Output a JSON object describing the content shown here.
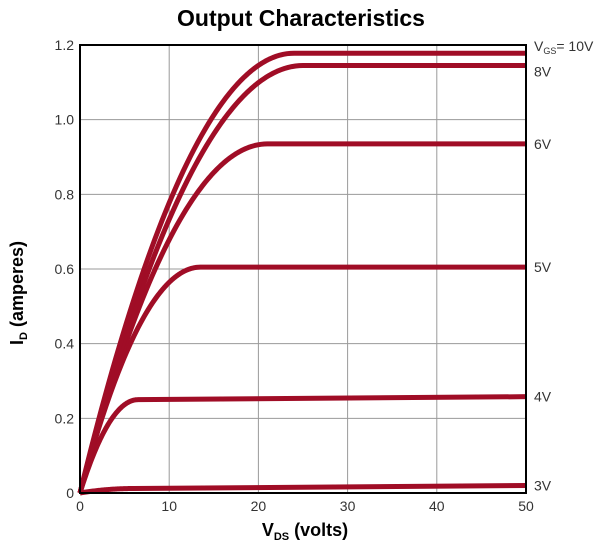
{
  "chart_data": {
    "type": "line",
    "title": "Output Characteristics",
    "xlabel": {
      "main": "V",
      "sub": "DS",
      "rest": " (volts)"
    },
    "ylabel": {
      "main": "I",
      "sub": "D",
      "rest": " (amperes)"
    },
    "xlim": [
      0,
      50
    ],
    "ylim": [
      0,
      1.2
    ],
    "xticks": [
      0,
      10,
      20,
      30,
      40,
      50
    ],
    "yticks": [
      0,
      0.2,
      0.4,
      0.6,
      0.8,
      1.0,
      1.2
    ],
    "ytick_labels": [
      "0",
      "0.2",
      "0.4",
      "0.6",
      "0.8",
      "1.0",
      "1.2"
    ],
    "grid": true,
    "series_color": "#a00d26",
    "series": [
      {
        "label": "3V",
        "sat_x": 6.0,
        "sat_y": 0.012,
        "end_y": 0.02
      },
      {
        "label": "4V",
        "sat_x": 6.5,
        "sat_y": 0.25,
        "end_y": 0.258
      },
      {
        "label": "5V",
        "sat_x": 13.5,
        "sat_y": 0.605,
        "end_y": 0.605
      },
      {
        "label": "6V",
        "sat_x": 21.0,
        "sat_y": 0.935,
        "end_y": 0.935
      },
      {
        "label": "8V",
        "sat_x": 25.0,
        "sat_y": 1.145,
        "end_y": 1.145
      },
      {
        "label": "= 10V",
        "prefix_main": "V",
        "prefix_sub": "GS",
        "sat_x": 24.0,
        "sat_y": 1.178,
        "end_y": 1.178
      }
    ]
  }
}
